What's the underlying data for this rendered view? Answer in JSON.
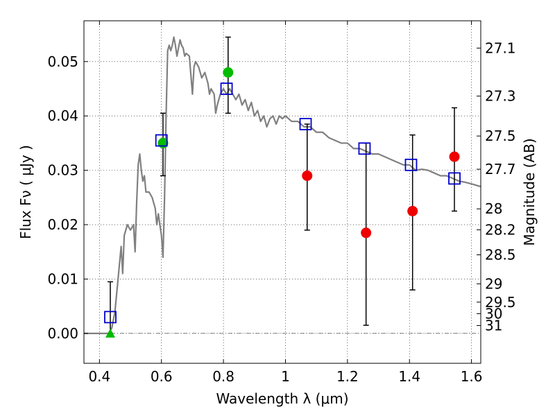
{
  "chart_data": {
    "type": "scatter",
    "xlabel": "Wavelength  λ (μm)",
    "ylabel": "Flux  Fν  ( μJy )",
    "ylabel_right": "Magnitude (AB)",
    "xlim": [
      0.35,
      1.63
    ],
    "ylim": [
      -0.0055,
      0.0575
    ],
    "x_ticks": [
      0.4,
      0.6,
      0.8,
      1.0,
      1.2,
      1.4,
      1.6
    ],
    "x_tick_labels": [
      "0.4",
      "0.6",
      "0.8",
      "1",
      "1.2",
      "1.4",
      "1.6"
    ],
    "y_ticks": [
      0.0,
      0.01,
      0.02,
      0.03,
      0.04,
      0.05
    ],
    "y_tick_labels": [
      "0.00",
      "0.01",
      "0.02",
      "0.03",
      "0.04",
      "0.05"
    ],
    "right_ticks": [
      {
        "mag": 27.1,
        "label": "27.1"
      },
      {
        "mag": 27.3,
        "label": "27.3"
      },
      {
        "mag": 27.5,
        "label": "27.5"
      },
      {
        "mag": 27.7,
        "label": "27.7"
      },
      {
        "mag": 28.0,
        "label": "28"
      },
      {
        "mag": 28.2,
        "label": "28.2"
      },
      {
        "mag": 28.5,
        "label": "28.5"
      },
      {
        "mag": 29.0,
        "label": "29"
      },
      {
        "mag": 29.5,
        "label": "29.5"
      },
      {
        "mag": 30.0,
        "label": "30"
      },
      {
        "mag": 31.0,
        "label": "31"
      }
    ],
    "grid": true,
    "colors": {
      "model": "#808080",
      "model_photometry": "#0000cc",
      "detection": "#00bb00",
      "non_detection": "#ee0000",
      "error_bar": "#000000"
    },
    "series": [
      {
        "kind": "line",
        "points": [
          [
            0.35,
            0.0
          ],
          [
            0.4,
            0.0
          ],
          [
            0.43,
            0.0
          ],
          [
            0.44,
            0.001
          ],
          [
            0.45,
            0.004
          ],
          [
            0.46,
            0.01
          ],
          [
            0.47,
            0.016
          ],
          [
            0.475,
            0.011
          ],
          [
            0.48,
            0.018
          ],
          [
            0.49,
            0.02
          ],
          [
            0.5,
            0.019
          ],
          [
            0.51,
            0.02
          ],
          [
            0.515,
            0.015
          ],
          [
            0.52,
            0.024
          ],
          [
            0.525,
            0.031
          ],
          [
            0.53,
            0.033
          ],
          [
            0.535,
            0.03
          ],
          [
            0.54,
            0.028
          ],
          [
            0.545,
            0.029
          ],
          [
            0.55,
            0.026
          ],
          [
            0.56,
            0.026
          ],
          [
            0.57,
            0.025
          ],
          [
            0.58,
            0.023
          ],
          [
            0.585,
            0.02
          ],
          [
            0.59,
            0.022
          ],
          [
            0.595,
            0.02
          ],
          [
            0.6,
            0.018
          ],
          [
            0.605,
            0.014
          ],
          [
            0.61,
            0.025
          ],
          [
            0.615,
            0.04
          ],
          [
            0.62,
            0.052
          ],
          [
            0.625,
            0.053
          ],
          [
            0.63,
            0.052
          ],
          [
            0.635,
            0.053
          ],
          [
            0.64,
            0.0545
          ],
          [
            0.645,
            0.053
          ],
          [
            0.65,
            0.051
          ],
          [
            0.655,
            0.0525
          ],
          [
            0.66,
            0.054
          ],
          [
            0.665,
            0.053
          ],
          [
            0.67,
            0.0525
          ],
          [
            0.675,
            0.051
          ],
          [
            0.68,
            0.0515
          ],
          [
            0.69,
            0.051
          ],
          [
            0.7,
            0.044
          ],
          [
            0.705,
            0.049
          ],
          [
            0.71,
            0.05
          ],
          [
            0.72,
            0.049
          ],
          [
            0.73,
            0.047
          ],
          [
            0.74,
            0.048
          ],
          [
            0.75,
            0.046
          ],
          [
            0.755,
            0.044
          ],
          [
            0.76,
            0.045
          ],
          [
            0.77,
            0.044
          ],
          [
            0.775,
            0.0405
          ],
          [
            0.78,
            0.042
          ],
          [
            0.79,
            0.044
          ],
          [
            0.8,
            0.045
          ],
          [
            0.81,
            0.044
          ],
          [
            0.82,
            0.045
          ],
          [
            0.83,
            0.044
          ],
          [
            0.84,
            0.043
          ],
          [
            0.85,
            0.044
          ],
          [
            0.86,
            0.042
          ],
          [
            0.87,
            0.043
          ],
          [
            0.88,
            0.041
          ],
          [
            0.89,
            0.0425
          ],
          [
            0.9,
            0.04
          ],
          [
            0.91,
            0.041
          ],
          [
            0.92,
            0.039
          ],
          [
            0.93,
            0.04
          ],
          [
            0.94,
            0.038
          ],
          [
            0.95,
            0.0395
          ],
          [
            0.96,
            0.04
          ],
          [
            0.97,
            0.0385
          ],
          [
            0.98,
            0.04
          ],
          [
            0.99,
            0.0395
          ],
          [
            1.0,
            0.04
          ],
          [
            1.02,
            0.039
          ],
          [
            1.04,
            0.039
          ],
          [
            1.06,
            0.038
          ],
          [
            1.08,
            0.038
          ],
          [
            1.1,
            0.037
          ],
          [
            1.12,
            0.037
          ],
          [
            1.14,
            0.036
          ],
          [
            1.16,
            0.0355
          ],
          [
            1.18,
            0.035
          ],
          [
            1.2,
            0.035
          ],
          [
            1.22,
            0.034
          ],
          [
            1.24,
            0.034
          ],
          [
            1.26,
            0.0335
          ],
          [
            1.28,
            0.033
          ],
          [
            1.3,
            0.033
          ],
          [
            1.32,
            0.0325
          ],
          [
            1.34,
            0.032
          ],
          [
            1.36,
            0.0315
          ],
          [
            1.38,
            0.031
          ],
          [
            1.4,
            0.031
          ],
          [
            1.42,
            0.03
          ],
          [
            1.44,
            0.0302
          ],
          [
            1.46,
            0.03
          ],
          [
            1.48,
            0.0295
          ],
          [
            1.5,
            0.029
          ],
          [
            1.52,
            0.029
          ],
          [
            1.54,
            0.0285
          ],
          [
            1.56,
            0.028
          ],
          [
            1.58,
            0.0278
          ],
          [
            1.6,
            0.0275
          ],
          [
            1.63,
            0.027
          ]
        ]
      },
      {
        "kind": "squares",
        "x": [
          0.435,
          0.6,
          0.81,
          1.065,
          1.255,
          1.405,
          1.545
        ],
        "y": [
          0.003,
          0.0355,
          0.045,
          0.0385,
          0.034,
          0.031,
          0.0285
        ]
      },
      {
        "kind": "green_points",
        "x": [
          0.605,
          0.815
        ],
        "y": [
          0.035,
          0.048
        ]
      },
      {
        "kind": "green_triangle",
        "x": [
          0.435
        ],
        "y": [
          0.0
        ]
      },
      {
        "kind": "red_points",
        "x": [
          1.07,
          1.26,
          1.41,
          1.545
        ],
        "y": [
          0.029,
          0.0185,
          0.0225,
          0.0325
        ]
      },
      {
        "kind": "error_bars",
        "bars": [
          {
            "x": 0.435,
            "low": 0.0,
            "high": 0.0095
          },
          {
            "x": 0.605,
            "low": 0.029,
            "high": 0.0405
          },
          {
            "x": 0.815,
            "low": 0.0405,
            "high": 0.0545
          },
          {
            "x": 1.07,
            "low": 0.019,
            "high": 0.0385
          },
          {
            "x": 1.26,
            "low": 0.0015,
            "high": 0.035
          },
          {
            "x": 1.41,
            "low": 0.008,
            "high": 0.0365
          },
          {
            "x": 1.545,
            "low": 0.0225,
            "high": 0.0415
          }
        ]
      }
    ]
  }
}
